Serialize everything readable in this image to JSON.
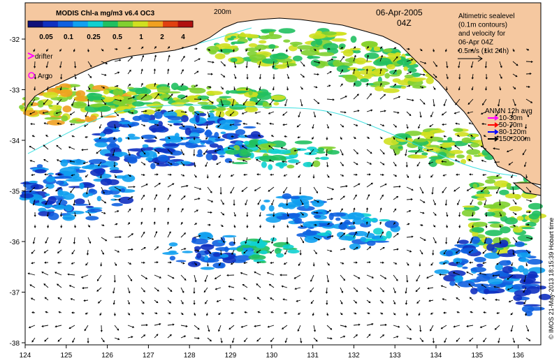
{
  "colorbar": {
    "title": "MODIS Chl-a mg/m3 v6.4 OC3",
    "ticks": [
      "0.05",
      "0.1",
      "0.25",
      "0.5",
      "1",
      "2",
      "4"
    ],
    "colors": [
      "#10107a",
      "#1030c0",
      "#1060e0",
      "#10a0f0",
      "#10d0d0",
      "#20c060",
      "#80d030",
      "#d0e020",
      "#f0a020",
      "#e04010",
      "#b01010"
    ]
  },
  "isobath_label": "200m",
  "date": "06-Apr-2005",
  "time": "04Z",
  "altimetry_note": [
    "Altimetric sealevel",
    "(0.1m contours)",
    "and velocity for",
    "06-Apr 04Z",
    "0.5m/s (1kt 24h)"
  ],
  "legend": {
    "drifter": "drifter",
    "argo": "Argo",
    "drifter_color": "#ff00ff",
    "argo_color": "#ff00ff"
  },
  "anmn": {
    "title": "ANMN 12h avg",
    "items": [
      {
        "label": "10-30m",
        "color": "#ff00ff"
      },
      {
        "label": "50-70m",
        "color": "#ff0000"
      },
      {
        "label": "80-120m",
        "color": "#0000ff"
      },
      {
        "label": "150-200m",
        "color": "#000000"
      }
    ]
  },
  "axes": {
    "x_ticks": [
      "124",
      "125",
      "126",
      "127",
      "128",
      "129",
      "130",
      "131",
      "132",
      "133",
      "134",
      "135",
      "136"
    ],
    "y_ticks": [
      "-32",
      "-33",
      "-34",
      "-35",
      "-36",
      "-37",
      "-38"
    ]
  },
  "credit": "© IMOS 21-May-2013 18:15:39 Hobart time",
  "colors": {
    "land": "#f5c8a0",
    "coast": "#000000",
    "isobath": "#40e0e0"
  }
}
